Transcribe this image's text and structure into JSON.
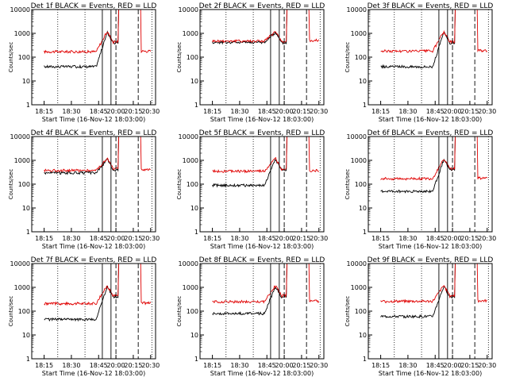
{
  "chart_data": {
    "type": "line",
    "xlabel": "Start Time (16-Nov-12 18:03:00)",
    "ylabel": "Counts/sec",
    "xticks": [
      "18:15",
      "18:30",
      "18:45",
      "20:00",
      "20:15",
      "20:30"
    ],
    "yticks": [
      "1",
      "10",
      "100",
      "1000",
      "10000"
    ],
    "ylim": [
      1,
      10000
    ],
    "ylog": true,
    "colors": {
      "events": "#000000",
      "lld": "#e00000"
    },
    "panels": [
      {
        "title": "Det 1f BLACK = Events, RED = LLD",
        "events_base": 40,
        "lld_base": 170
      },
      {
        "title": "Det 2f BLACK = Events, RED = LLD",
        "events_base": 420,
        "lld_base": 480
      },
      {
        "title": "Det 3f BLACK = Events, RED = LLD",
        "events_base": 40,
        "lld_base": 180
      },
      {
        "title": "Det 4f BLACK = Events, RED = LLD",
        "events_base": 300,
        "lld_base": 380
      },
      {
        "title": "Det 5f BLACK = Events, RED = LLD",
        "events_base": 90,
        "lld_base": 350
      },
      {
        "title": "Det 6f BLACK = Events, RED = LLD",
        "events_base": 50,
        "lld_base": 170
      },
      {
        "title": "Det 7f BLACK = Events, RED = LLD",
        "events_base": 45,
        "lld_base": 210
      },
      {
        "title": "Det 8f BLACK = Events, RED = LLD",
        "events_base": 80,
        "lld_base": 250
      },
      {
        "title": "Det 9f BLACK = Events, RED = LLD",
        "events_base": 60,
        "lld_base": 260
      }
    ]
  }
}
